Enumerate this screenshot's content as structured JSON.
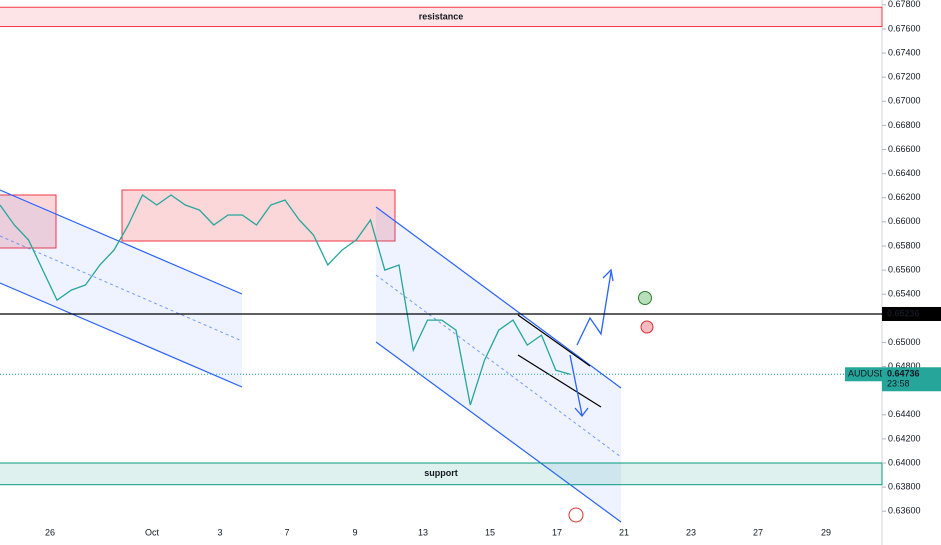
{
  "chart_data": {
    "type": "line",
    "symbol": "AUDUSD",
    "countdown": "23:58",
    "ylim": [
      0.6332,
      0.6784
    ],
    "yticks": [
      {
        "value": 0.678,
        "label": "0.67800"
      },
      {
        "value": 0.676,
        "label": "0.67600"
      },
      {
        "value": 0.674,
        "label": "0.67400"
      },
      {
        "value": 0.672,
        "label": "0.67200"
      },
      {
        "value": 0.67,
        "label": "0.67000"
      },
      {
        "value": 0.668,
        "label": "0.66800"
      },
      {
        "value": 0.666,
        "label": "0.66600"
      },
      {
        "value": 0.664,
        "label": "0.66400"
      },
      {
        "value": 0.662,
        "label": "0.66200"
      },
      {
        "value": 0.66,
        "label": "0.66000"
      },
      {
        "value": 0.658,
        "label": "0.65800"
      },
      {
        "value": 0.656,
        "label": "0.65600"
      },
      {
        "value": 0.654,
        "label": "0.65400"
      },
      {
        "value": 0.65,
        "label": "0.65000"
      },
      {
        "value": 0.648,
        "label": "0.64800"
      },
      {
        "value": 0.644,
        "label": "0.64400"
      },
      {
        "value": 0.642,
        "label": "0.64200"
      },
      {
        "value": 0.64,
        "label": "0.64000"
      },
      {
        "value": 0.638,
        "label": "0.63800"
      },
      {
        "value": 0.636,
        "label": "0.63600"
      }
    ],
    "xticks": [
      "26",
      "Oct",
      "3",
      "7",
      "9",
      "13",
      "15",
      "17",
      "21",
      "23",
      "27",
      "29"
    ],
    "series": [
      {
        "name": "AUDUSD",
        "color": "#26a69a",
        "values": [
          0.6614,
          0.65974,
          0.6585,
          0.656,
          0.65351,
          0.65434,
          0.65476,
          0.65642,
          0.65766,
          0.65974,
          0.66223,
          0.6614,
          0.66223,
          0.6614,
          0.66098,
          0.65974,
          0.66057,
          0.66057,
          0.65974,
          0.6614,
          0.66181,
          0.66015,
          0.65891,
          0.65642,
          0.65766,
          0.6585,
          0.66015,
          0.656,
          0.65642,
          0.64936,
          0.65185,
          0.65185,
          0.65102,
          0.6448,
          0.64853,
          0.65102,
          0.65185,
          0.64978,
          0.65061,
          0.6477,
          0.64736
        ]
      }
    ],
    "last_price": 0.64736,
    "hline": 0.65236,
    "zones": [
      {
        "name": "resistance",
        "range": [
          0.6762,
          0.6778
        ],
        "color": "#f23645"
      },
      {
        "name": "support",
        "range": [
          0.6382,
          0.64
        ],
        "color": "#089981"
      }
    ]
  }
}
